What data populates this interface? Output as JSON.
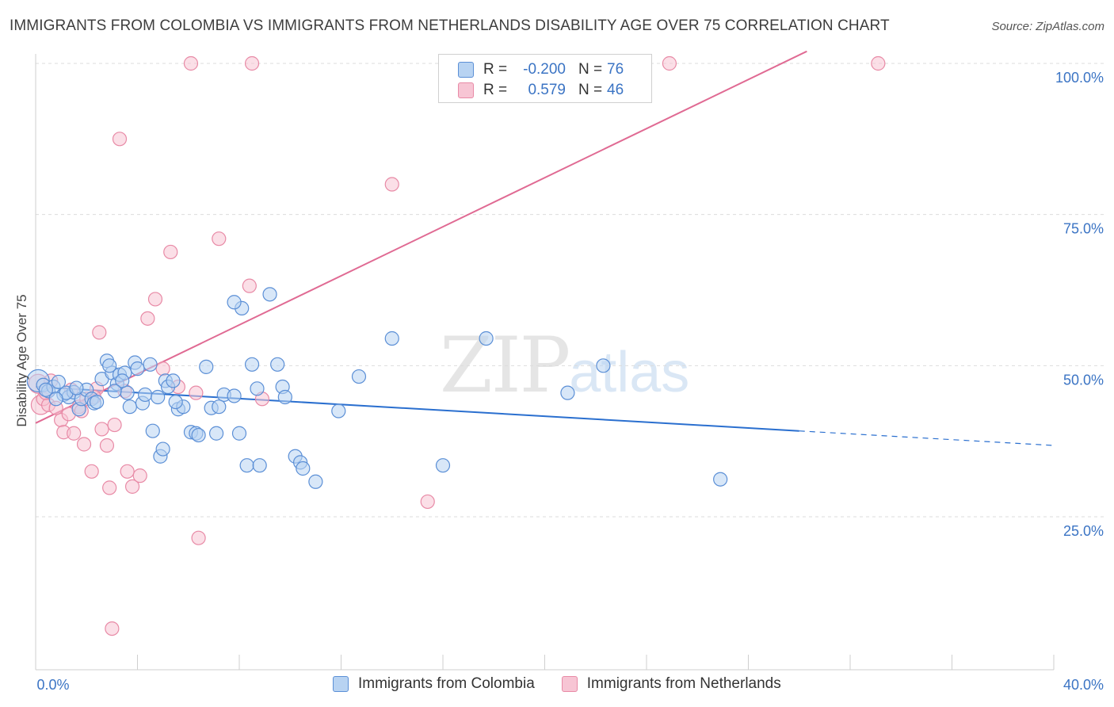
{
  "title": "IMMIGRANTS FROM COLOMBIA VS IMMIGRANTS FROM NETHERLANDS DISABILITY AGE OVER 75 CORRELATION CHART",
  "source": "Source: ZipAtlas.com",
  "watermark": {
    "zip": "ZIP",
    "atlas": "atlas"
  },
  "colors": {
    "blue_fill": "#b8d3f2",
    "blue_stroke": "#5b8fd6",
    "blue_line": "#2a6fcf",
    "pink_fill": "#f7c5d4",
    "pink_stroke": "#e88aa6",
    "pink_line": "#e06a93",
    "tick_text": "#3b74c4",
    "grid": "#dcdcdc"
  },
  "legend": {
    "rows": [
      {
        "r_label": "R =",
        "r_value": "-0.200",
        "n_label": "N =",
        "n_value": "76",
        "series": "colombia"
      },
      {
        "r_label": "R =",
        "r_value": "0.579",
        "n_label": "N =",
        "n_value": "46",
        "series": "netherlands"
      }
    ]
  },
  "bottom_legend": [
    {
      "label": "Immigrants from Colombia",
      "series": "colombia"
    },
    {
      "label": "Immigrants from Netherlands",
      "series": "netherlands"
    }
  ],
  "chart_data": {
    "type": "scatter",
    "title": "IMMIGRANTS FROM COLOMBIA VS IMMIGRANTS FROM NETHERLANDS DISABILITY AGE OVER 75 CORRELATION CHART",
    "xlabel": "",
    "ylabel": "Disability Age Over 75",
    "xlim": [
      0,
      40
    ],
    "ylim": [
      0,
      102
    ],
    "x_tick_labels": [
      {
        "value": 0,
        "label": "0.0%"
      },
      {
        "value": 40,
        "label": "40.0%"
      }
    ],
    "y_tick_labels": [
      {
        "value": 25,
        "label": "25.0%"
      },
      {
        "value": 50,
        "label": "50.0%"
      },
      {
        "value": 75,
        "label": "75.0%"
      },
      {
        "value": 100,
        "label": "100.0%"
      }
    ],
    "grid": true,
    "legend_position": "top-center",
    "series": [
      {
        "name": "Immigrants from Colombia",
        "key": "colombia",
        "trend": {
          "x0": 0,
          "y0": 46.5,
          "x1": 30,
          "y1": 39.2,
          "dash_to_x": 40,
          "dash_to_y": 36.8
        },
        "points": [
          [
            0.1,
            47.5
          ],
          [
            0.3,
            46.8
          ],
          [
            0.5,
            45.8
          ],
          [
            0.7,
            46.5
          ],
          [
            0.9,
            47.3
          ],
          [
            1.1,
            45.2
          ],
          [
            1.3,
            44.8
          ],
          [
            1.5,
            45.6
          ],
          [
            1.7,
            42.8
          ],
          [
            1.8,
            44.5
          ],
          [
            2.0,
            46.0
          ],
          [
            2.2,
            44.5
          ],
          [
            2.3,
            43.8
          ],
          [
            2.4,
            44.0
          ],
          [
            2.6,
            47.8
          ],
          [
            2.8,
            50.8
          ],
          [
            3.0,
            48.8
          ],
          [
            3.2,
            47.0
          ],
          [
            3.3,
            48.5
          ],
          [
            3.5,
            48.8
          ],
          [
            3.6,
            45.5
          ],
          [
            3.7,
            43.2
          ],
          [
            3.9,
            50.5
          ],
          [
            4.0,
            49.5
          ],
          [
            4.2,
            43.8
          ],
          [
            4.3,
            45.2
          ],
          [
            4.6,
            39.2
          ],
          [
            4.8,
            44.8
          ],
          [
            4.9,
            35.0
          ],
          [
            5.0,
            36.2
          ],
          [
            5.1,
            47.5
          ],
          [
            5.2,
            46.5
          ],
          [
            5.4,
            47.5
          ],
          [
            5.6,
            42.8
          ],
          [
            5.8,
            43.2
          ],
          [
            6.1,
            39.0
          ],
          [
            6.3,
            38.8
          ],
          [
            6.4,
            38.5
          ],
          [
            6.7,
            49.8
          ],
          [
            6.9,
            43.0
          ],
          [
            7.1,
            38.8
          ],
          [
            7.4,
            45.2
          ],
          [
            7.8,
            45.0
          ],
          [
            8.0,
            38.8
          ],
          [
            8.3,
            33.5
          ],
          [
            8.5,
            50.2
          ],
          [
            8.7,
            46.2
          ],
          [
            8.8,
            33.5
          ],
          [
            9.2,
            61.8
          ],
          [
            9.5,
            50.2
          ],
          [
            9.7,
            46.5
          ],
          [
            9.8,
            44.8
          ],
          [
            10.2,
            35.0
          ],
          [
            10.4,
            34.0
          ],
          [
            10.5,
            33.0
          ],
          [
            11.0,
            30.8
          ],
          [
            11.9,
            42.5
          ],
          [
            12.7,
            48.2
          ],
          [
            14.0,
            54.5
          ],
          [
            16.0,
            33.5
          ],
          [
            17.7,
            54.5
          ],
          [
            20.9,
            45.5
          ],
          [
            22.3,
            50.0
          ],
          [
            26.9,
            31.2
          ],
          [
            8.1,
            59.5
          ],
          [
            7.8,
            60.5
          ],
          [
            3.4,
            47.5
          ],
          [
            4.5,
            50.2
          ],
          [
            0.4,
            46.0
          ],
          [
            1.2,
            45.5
          ],
          [
            2.9,
            50.0
          ],
          [
            5.5,
            44.0
          ],
          [
            7.2,
            43.2
          ],
          [
            3.1,
            45.8
          ],
          [
            1.6,
            46.3
          ],
          [
            0.8,
            44.5
          ]
        ]
      },
      {
        "name": "Immigrants from Netherlands",
        "key": "netherlands",
        "trend": {
          "x0": 0,
          "y0": 40.5,
          "x1": 30.3,
          "y1": 102
        },
        "points": [
          [
            0.1,
            47.0
          ],
          [
            0.2,
            43.5
          ],
          [
            0.3,
            44.5
          ],
          [
            0.5,
            43.5
          ],
          [
            0.6,
            47.5
          ],
          [
            1.0,
            41.0
          ],
          [
            1.1,
            39.0
          ],
          [
            1.3,
            42.0
          ],
          [
            1.5,
            38.8
          ],
          [
            1.7,
            43.2
          ],
          [
            1.9,
            37.0
          ],
          [
            2.0,
            44.5
          ],
          [
            2.2,
            32.5
          ],
          [
            2.4,
            46.2
          ],
          [
            2.5,
            55.5
          ],
          [
            2.6,
            39.5
          ],
          [
            2.8,
            36.8
          ],
          [
            2.9,
            29.8
          ],
          [
            3.1,
            40.2
          ],
          [
            3.3,
            87.5
          ],
          [
            3.6,
            32.5
          ],
          [
            3.8,
            30.0
          ],
          [
            4.1,
            31.8
          ],
          [
            4.4,
            57.8
          ],
          [
            4.7,
            61.0
          ],
          [
            5.3,
            68.8
          ],
          [
            5.6,
            46.5
          ],
          [
            6.1,
            100
          ],
          [
            6.4,
            21.5
          ],
          [
            7.2,
            71.0
          ],
          [
            8.4,
            63.2
          ],
          [
            8.9,
            44.5
          ],
          [
            8.5,
            100
          ],
          [
            14.0,
            80.0
          ],
          [
            15.4,
            27.5
          ],
          [
            24.9,
            100
          ],
          [
            33.1,
            100
          ],
          [
            3.0,
            6.5
          ],
          [
            0.8,
            43.0
          ],
          [
            1.4,
            46.0
          ],
          [
            2.3,
            44.8
          ],
          [
            5.0,
            49.5
          ],
          [
            3.5,
            45.8
          ],
          [
            1.8,
            42.5
          ],
          [
            0.4,
            45.5
          ],
          [
            6.3,
            45.5
          ]
        ]
      }
    ]
  }
}
